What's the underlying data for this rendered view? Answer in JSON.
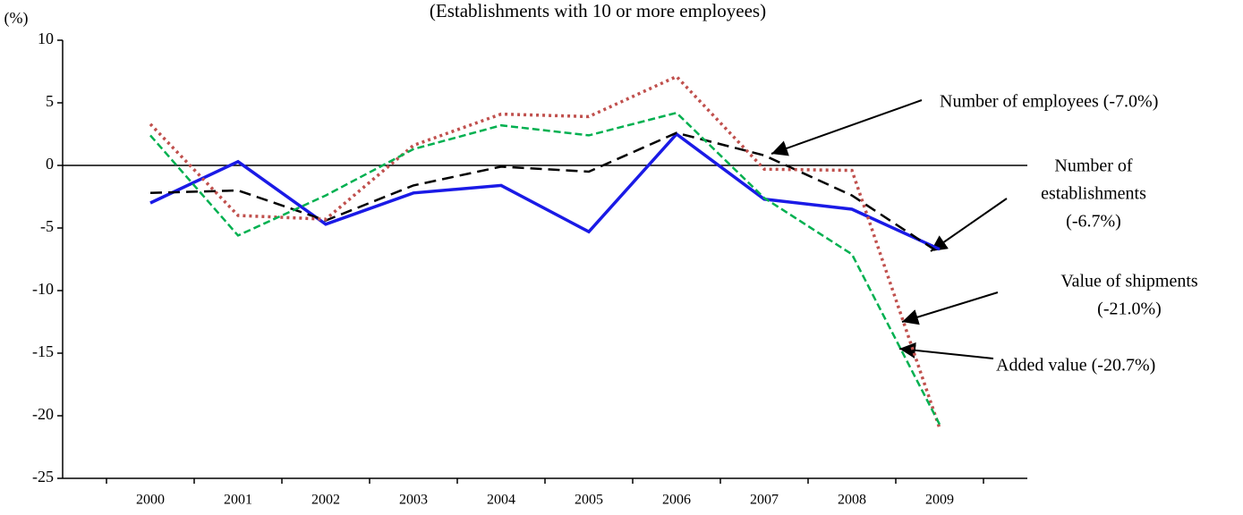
{
  "chart_data": {
    "type": "line",
    "title": "(Establishments with 10 or more employees)",
    "y_unit": "(%)",
    "categories": [
      "2000",
      "2001",
      "2002",
      "2003",
      "2004",
      "2005",
      "2006",
      "2007",
      "2008",
      "2009"
    ],
    "series": [
      {
        "color": "#1a1ae6",
        "values": [
          -3.0,
          0.3,
          -4.7,
          -2.2,
          -1.6,
          -5.3,
          2.5,
          -2.7,
          -3.5,
          -6.7
        ]
      },
      {
        "color": "#000000",
        "values": [
          -2.2,
          -2.0,
          -4.4,
          -1.6,
          -0.1,
          -0.5,
          2.6,
          0.8,
          -2.4,
          -7.0
        ]
      },
      {
        "color": "#c0504d",
        "values": [
          3.3,
          -4.0,
          -4.3,
          1.6,
          4.1,
          3.9,
          7.1,
          -0.3,
          -0.4,
          -21.0
        ]
      },
      {
        "color": "#00b050",
        "values": [
          2.4,
          -5.6,
          -2.4,
          1.3,
          3.2,
          2.4,
          4.2,
          -2.6,
          -7.1,
          -20.7
        ]
      }
    ],
    "annotations": [
      {
        "lines": [
          "Number of employees (-7.0%)"
        ]
      },
      {
        "lines": [
          "Number of",
          "establishments",
          "(-6.7%)"
        ]
      },
      {
        "lines": [
          "Value of shipments",
          "(-21.0%)"
        ]
      },
      {
        "lines": [
          "Added value (-20.7%)"
        ]
      }
    ],
    "ylim": [
      -25,
      10
    ],
    "yticks": [
      -25,
      -20,
      -15,
      -10,
      -5,
      0,
      5,
      10
    ]
  }
}
